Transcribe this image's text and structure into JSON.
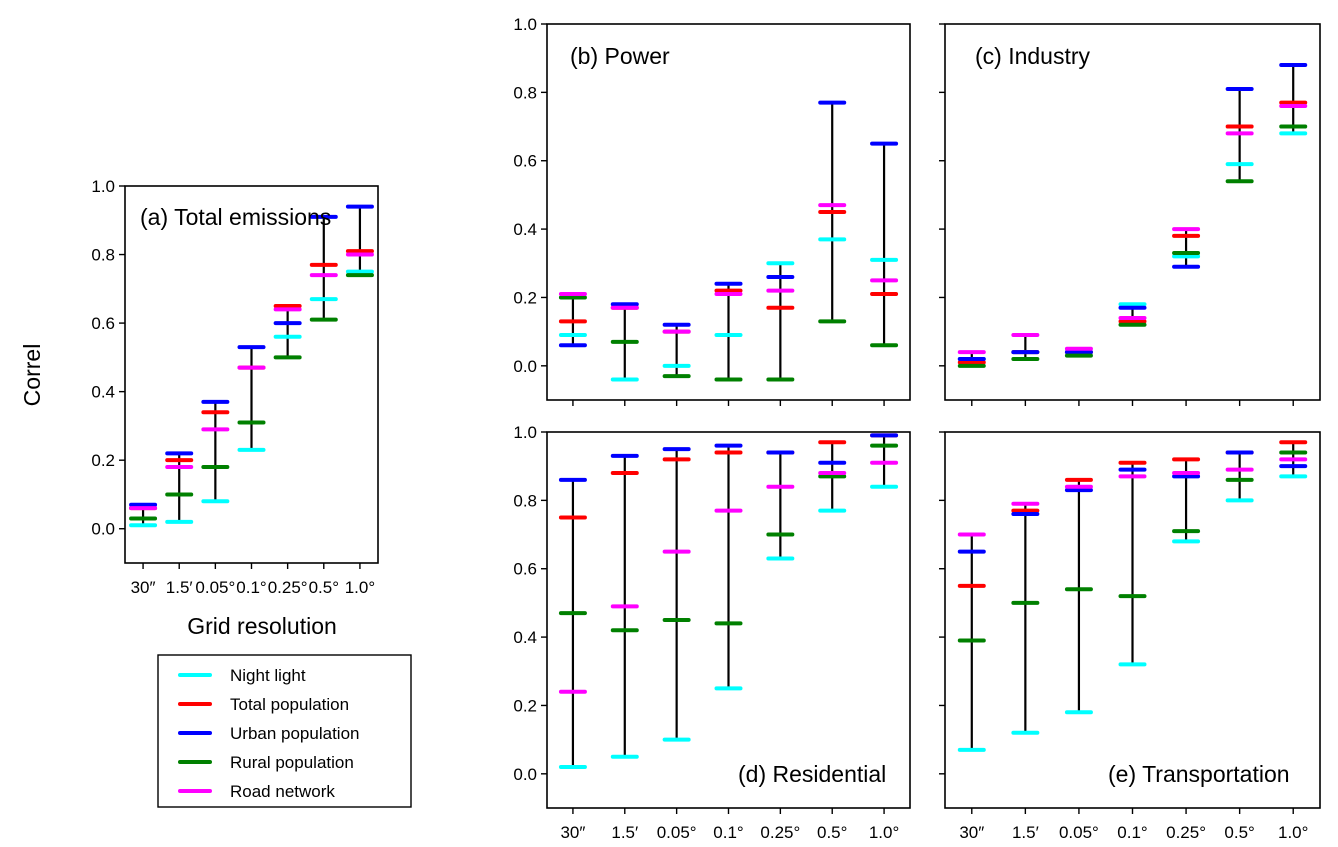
{
  "chart_data": {
    "type": "range-plot",
    "ylabel": "Correl",
    "xlabel": "Grid resolution",
    "categories": [
      "30″",
      "1.5′",
      "0.05°",
      "0.1°",
      "0.25°",
      "0.5°",
      "1.0°"
    ],
    "ylim": [
      -0.1,
      1.0
    ],
    "yticks": [
      "0.0",
      "0.2",
      "0.4",
      "0.6",
      "0.8",
      "1.0"
    ],
    "series_names": [
      "Night light",
      "Total population",
      "Urban population",
      "Rural population",
      "Road network"
    ],
    "colors": {
      "Night light": "#00ffff",
      "Total population": "#ff0000",
      "Urban population": "#0000ff",
      "Rural population": "#008000",
      "Road network": "#ff00ff"
    },
    "panels": [
      {
        "id": "a",
        "title": "(a) Total emissions",
        "values": {
          "Night light": [
            0.01,
            0.02,
            0.08,
            0.23,
            0.56,
            0.67,
            0.75
          ],
          "Total population": [
            0.06,
            0.2,
            0.34,
            0.47,
            0.65,
            0.77,
            0.81
          ],
          "Urban population": [
            0.07,
            0.22,
            0.37,
            0.53,
            0.6,
            0.91,
            0.94
          ],
          "Rural population": [
            0.03,
            0.1,
            0.18,
            0.31,
            0.5,
            0.61,
            0.74
          ],
          "Road network": [
            0.06,
            0.18,
            0.29,
            0.47,
            0.64,
            0.74,
            0.8
          ]
        }
      },
      {
        "id": "b",
        "title": "(b) Power",
        "values": {
          "Night light": [
            0.09,
            -0.04,
            0.0,
            0.09,
            0.3,
            0.37,
            0.31
          ],
          "Total population": [
            0.13,
            0.17,
            0.1,
            0.22,
            0.17,
            0.45,
            0.21
          ],
          "Urban population": [
            0.06,
            0.18,
            0.12,
            0.24,
            0.26,
            0.77,
            0.65
          ],
          "Rural population": [
            0.2,
            0.07,
            -0.03,
            -0.04,
            -0.04,
            0.13,
            0.06
          ],
          "Road network": [
            0.21,
            0.17,
            0.1,
            0.21,
            0.22,
            0.47,
            0.25
          ]
        }
      },
      {
        "id": "c",
        "title": "(c) Industry",
        "values": {
          "Night light": [
            0.02,
            0.04,
            0.04,
            0.18,
            0.32,
            0.59,
            0.68
          ],
          "Total population": [
            0.01,
            0.04,
            0.04,
            0.13,
            0.38,
            0.7,
            0.77
          ],
          "Urban population": [
            0.02,
            0.04,
            0.04,
            0.17,
            0.29,
            0.81,
            0.88
          ],
          "Rural population": [
            0.0,
            0.02,
            0.03,
            0.12,
            0.33,
            0.54,
            0.7
          ],
          "Road network": [
            0.04,
            0.09,
            0.05,
            0.14,
            0.4,
            0.68,
            0.76
          ]
        }
      },
      {
        "id": "d",
        "title": "(d) Residential",
        "values": {
          "Night light": [
            0.02,
            0.05,
            0.1,
            0.25,
            0.63,
            0.77,
            0.84
          ],
          "Total population": [
            0.75,
            0.88,
            0.92,
            0.94,
            0.94,
            0.97,
            0.99
          ],
          "Urban population": [
            0.86,
            0.93,
            0.95,
            0.96,
            0.94,
            0.91,
            0.99
          ],
          "Rural population": [
            0.47,
            0.42,
            0.45,
            0.44,
            0.7,
            0.87,
            0.96
          ],
          "Road network": [
            0.24,
            0.49,
            0.65,
            0.77,
            0.84,
            0.88,
            0.91
          ]
        }
      },
      {
        "id": "e",
        "title": "(e) Transportation",
        "values": {
          "Night light": [
            0.07,
            0.12,
            0.18,
            0.32,
            0.68,
            0.8,
            0.87
          ],
          "Total population": [
            0.55,
            0.77,
            0.86,
            0.91,
            0.92,
            0.94,
            0.97
          ],
          "Urban population": [
            0.65,
            0.76,
            0.83,
            0.89,
            0.87,
            0.94,
            0.9
          ],
          "Rural population": [
            0.39,
            0.5,
            0.54,
            0.52,
            0.71,
            0.86,
            0.94
          ],
          "Road network": [
            0.7,
            0.79,
            0.84,
            0.87,
            0.88,
            0.89,
            0.92
          ]
        }
      }
    ]
  }
}
